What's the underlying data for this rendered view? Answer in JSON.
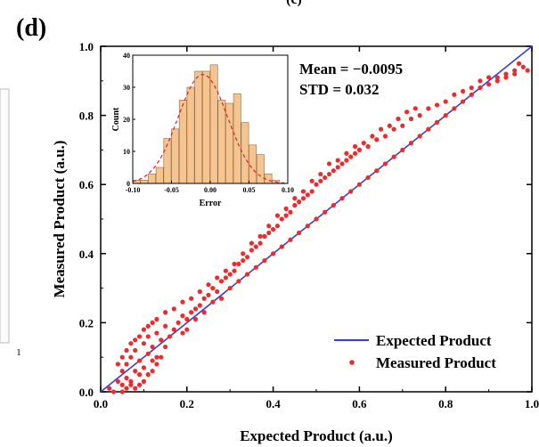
{
  "panel_label": "(d)",
  "top_cut_text": "(c)",
  "left_fragment_tick": "1",
  "colors": {
    "identity_line": "#3a3adf",
    "points": "#ec2b2e",
    "hist_fill": "#f6c48f",
    "hist_edge": "#8a6a4a",
    "fit_curve": "#e02222",
    "axis": "#000000"
  },
  "chart_data": [
    {
      "type": "scatter",
      "title": "",
      "xlabel": "Expected Product (a.u.)",
      "ylabel": "Measured Product (a.u.)",
      "xlim": [
        0.0,
        1.0
      ],
      "ylim": [
        0.0,
        1.0
      ],
      "xticks": [
        "0.0",
        "0.2",
        "0.4",
        "0.6",
        "0.8",
        "1.0"
      ],
      "yticks": [
        "0.0",
        "0.2",
        "0.4",
        "0.6",
        "0.8",
        "1.0"
      ],
      "grid": false,
      "legend_position": "bottom-right",
      "annotations": [
        "Mean = −0.0095",
        "STD = 0.032"
      ],
      "legend": [
        "Expected Product",
        "Measured Product"
      ],
      "series": [
        {
          "name": "Expected Product",
          "kind": "line",
          "x": [
            0.0,
            1.0
          ],
          "y": [
            0.0,
            1.0
          ]
        },
        {
          "name": "Measured Product",
          "kind": "scatter",
          "points": [
            [
              0.02,
              0.01
            ],
            [
              0.03,
              0.0
            ],
            [
              0.04,
              0.03
            ],
            [
              0.05,
              0.02
            ],
            [
              0.05,
              0.06
            ],
            [
              0.06,
              0.04
            ],
            [
              0.06,
              0.08
            ],
            [
              0.07,
              0.03
            ],
            [
              0.07,
              0.1
            ],
            [
              0.08,
              0.06
            ],
            [
              0.08,
              0.12
            ],
            [
              0.09,
              0.05
            ],
            [
              0.09,
              0.09
            ],
            [
              0.1,
              0.14
            ],
            [
              0.1,
              0.07
            ],
            [
              0.11,
              0.11
            ],
            [
              0.11,
              0.16
            ],
            [
              0.12,
              0.09
            ],
            [
              0.12,
              0.13
            ],
            [
              0.13,
              0.17
            ],
            [
              0.13,
              0.1
            ],
            [
              0.14,
              0.15
            ],
            [
              0.15,
              0.13
            ],
            [
              0.15,
              0.19
            ],
            [
              0.16,
              0.16
            ],
            [
              0.17,
              0.18
            ],
            [
              0.18,
              0.2
            ],
            [
              0.19,
              0.17
            ],
            [
              0.19,
              0.22
            ],
            [
              0.2,
              0.21
            ],
            [
              0.21,
              0.23
            ],
            [
              0.22,
              0.24
            ],
            [
              0.23,
              0.25
            ],
            [
              0.24,
              0.27
            ],
            [
              0.25,
              0.28
            ],
            [
              0.26,
              0.3
            ],
            [
              0.27,
              0.29
            ],
            [
              0.28,
              0.32
            ],
            [
              0.29,
              0.33
            ],
            [
              0.3,
              0.34
            ],
            [
              0.31,
              0.35
            ],
            [
              0.32,
              0.37
            ],
            [
              0.33,
              0.38
            ],
            [
              0.34,
              0.39
            ],
            [
              0.35,
              0.41
            ],
            [
              0.36,
              0.42
            ],
            [
              0.37,
              0.43
            ],
            [
              0.38,
              0.45
            ],
            [
              0.39,
              0.46
            ],
            [
              0.4,
              0.47
            ],
            [
              0.41,
              0.48
            ],
            [
              0.42,
              0.5
            ],
            [
              0.43,
              0.51
            ],
            [
              0.44,
              0.52
            ],
            [
              0.45,
              0.54
            ],
            [
              0.46,
              0.55
            ],
            [
              0.47,
              0.56
            ],
            [
              0.48,
              0.57
            ],
            [
              0.49,
              0.58
            ],
            [
              0.5,
              0.6
            ],
            [
              0.51,
              0.61
            ],
            [
              0.52,
              0.62
            ],
            [
              0.53,
              0.63
            ],
            [
              0.54,
              0.64
            ],
            [
              0.55,
              0.65
            ],
            [
              0.56,
              0.66
            ],
            [
              0.57,
              0.67
            ],
            [
              0.58,
              0.68
            ],
            [
              0.59,
              0.69
            ],
            [
              0.6,
              0.7
            ],
            [
              0.62,
              0.71
            ],
            [
              0.64,
              0.73
            ],
            [
              0.66,
              0.74
            ],
            [
              0.68,
              0.76
            ],
            [
              0.7,
              0.77
            ],
            [
              0.72,
              0.79
            ],
            [
              0.74,
              0.8
            ],
            [
              0.76,
              0.82
            ],
            [
              0.78,
              0.83
            ],
            [
              0.8,
              0.84
            ],
            [
              0.82,
              0.86
            ],
            [
              0.84,
              0.87
            ],
            [
              0.86,
              0.88
            ],
            [
              0.88,
              0.9
            ],
            [
              0.9,
              0.91
            ],
            [
              0.92,
              0.91
            ],
            [
              0.94,
              0.92
            ],
            [
              0.96,
              0.92
            ],
            [
              0.98,
              0.94
            ],
            [
              0.99,
              0.93
            ],
            [
              0.05,
              0.0
            ],
            [
              0.06,
              0.01
            ],
            [
              0.07,
              0.02
            ],
            [
              0.08,
              0.01
            ],
            [
              0.09,
              0.02
            ],
            [
              0.1,
              0.03
            ],
            [
              0.11,
              0.05
            ],
            [
              0.12,
              0.06
            ],
            [
              0.13,
              0.08
            ],
            [
              0.14,
              0.1
            ],
            [
              0.04,
              0.08
            ],
            [
              0.05,
              0.1
            ],
            [
              0.06,
              0.12
            ],
            [
              0.07,
              0.14
            ],
            [
              0.08,
              0.15
            ],
            [
              0.09,
              0.16
            ],
            [
              0.1,
              0.18
            ],
            [
              0.11,
              0.19
            ],
            [
              0.12,
              0.2
            ],
            [
              0.13,
              0.21
            ],
            [
              0.15,
              0.23
            ],
            [
              0.17,
              0.24
            ],
            [
              0.19,
              0.26
            ],
            [
              0.21,
              0.27
            ],
            [
              0.23,
              0.29
            ],
            [
              0.25,
              0.31
            ],
            [
              0.27,
              0.33
            ],
            [
              0.29,
              0.35
            ],
            [
              0.31,
              0.37
            ],
            [
              0.33,
              0.4
            ],
            [
              0.35,
              0.43
            ],
            [
              0.37,
              0.45
            ],
            [
              0.39,
              0.48
            ],
            [
              0.41,
              0.51
            ],
            [
              0.43,
              0.53
            ],
            [
              0.45,
              0.56
            ],
            [
              0.47,
              0.58
            ],
            [
              0.49,
              0.61
            ],
            [
              0.51,
              0.63
            ],
            [
              0.53,
              0.66
            ],
            [
              0.55,
              0.67
            ],
            [
              0.57,
              0.69
            ],
            [
              0.59,
              0.71
            ],
            [
              0.61,
              0.72
            ],
            [
              0.63,
              0.74
            ],
            [
              0.65,
              0.76
            ],
            [
              0.67,
              0.77
            ],
            [
              0.69,
              0.79
            ],
            [
              0.71,
              0.81
            ],
            [
              0.73,
              0.82
            ],
            [
              0.2,
              0.18
            ],
            [
              0.22,
              0.21
            ],
            [
              0.24,
              0.23
            ],
            [
              0.26,
              0.26
            ],
            [
              0.28,
              0.27
            ],
            [
              0.3,
              0.3
            ],
            [
              0.32,
              0.32
            ],
            [
              0.34,
              0.34
            ],
            [
              0.36,
              0.36
            ],
            [
              0.38,
              0.38
            ],
            [
              0.4,
              0.4
            ],
            [
              0.42,
              0.42
            ],
            [
              0.44,
              0.44
            ],
            [
              0.46,
              0.46
            ],
            [
              0.48,
              0.48
            ],
            [
              0.5,
              0.5
            ],
            [
              0.52,
              0.52
            ],
            [
              0.54,
              0.54
            ],
            [
              0.56,
              0.56
            ],
            [
              0.58,
              0.58
            ],
            [
              0.6,
              0.6
            ],
            [
              0.62,
              0.62
            ],
            [
              0.64,
              0.64
            ],
            [
              0.66,
              0.66
            ],
            [
              0.68,
              0.68
            ],
            [
              0.7,
              0.7
            ],
            [
              0.72,
              0.72
            ],
            [
              0.74,
              0.74
            ],
            [
              0.76,
              0.76
            ],
            [
              0.78,
              0.78
            ],
            [
              0.8,
              0.8
            ],
            [
              0.82,
              0.82
            ],
            [
              0.84,
              0.84
            ],
            [
              0.86,
              0.86
            ],
            [
              0.88,
              0.88
            ],
            [
              0.9,
              0.89
            ],
            [
              0.92,
              0.9
            ],
            [
              0.94,
              0.91
            ],
            [
              0.96,
              0.93
            ],
            [
              0.97,
              0.95
            ]
          ]
        }
      ]
    },
    {
      "type": "bar",
      "title": "",
      "xlabel": "Error",
      "ylabel": "Count",
      "xlim": [
        -0.1,
        0.1
      ],
      "ylim": [
        0,
        40
      ],
      "xticks": [
        "-0.10",
        "-0.05",
        "0.00",
        "0.05",
        "0.10"
      ],
      "yticks": [
        "0",
        "10",
        "20",
        "30",
        "40"
      ],
      "bin_width": 0.0095,
      "bins": [
        {
          "x": -0.1,
          "count": 1
        },
        {
          "x": -0.09,
          "count": 1
        },
        {
          "x": -0.08,
          "count": 3
        },
        {
          "x": -0.07,
          "count": 5
        },
        {
          "x": -0.06,
          "count": 14
        },
        {
          "x": -0.05,
          "count": 17
        },
        {
          "x": -0.04,
          "count": 26
        },
        {
          "x": -0.03,
          "count": 30
        },
        {
          "x": -0.02,
          "count": 35
        },
        {
          "x": -0.01,
          "count": 35
        },
        {
          "x": 0.0,
          "count": 37
        },
        {
          "x": 0.01,
          "count": 26
        },
        {
          "x": 0.02,
          "count": 25
        },
        {
          "x": 0.03,
          "count": 28
        },
        {
          "x": 0.04,
          "count": 19
        },
        {
          "x": 0.05,
          "count": 12
        },
        {
          "x": 0.06,
          "count": 9
        },
        {
          "x": 0.07,
          "count": 3
        },
        {
          "x": 0.08,
          "count": 1
        }
      ],
      "fit": {
        "kind": "gaussian",
        "mean": -0.0095,
        "std": 0.032,
        "peak": 34
      }
    }
  ]
}
